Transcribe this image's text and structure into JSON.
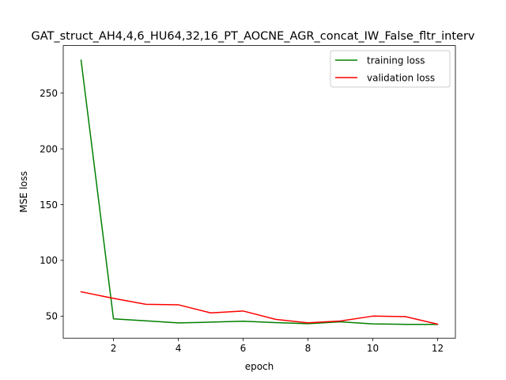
{
  "chart_data": {
    "type": "line",
    "title": "GAT_struct_AH4,4,6_HU64,32,16_PT_AOCNE_AGR_concat_IW_False_fltr_interv",
    "xlabel": "epoch",
    "ylabel": "MSE loss",
    "xlim": [
      0.45,
      12.55
    ],
    "ylim": [
      30.2,
      292.6
    ],
    "xticks": [
      2,
      4,
      6,
      8,
      10,
      12
    ],
    "yticks": [
      50,
      100,
      150,
      200,
      250
    ],
    "legend_position": "top-right",
    "x": [
      1,
      2,
      3,
      4,
      5,
      6,
      7,
      8,
      9,
      10,
      11,
      12
    ],
    "series": [
      {
        "name": "training loss",
        "color": "#008000",
        "values": [
          279.5,
          47.6,
          45.8,
          43.9,
          44.6,
          45.4,
          44.2,
          43.2,
          44.9,
          43.0,
          42.6,
          42.6
        ]
      },
      {
        "name": "validation loss",
        "color": "#ff0000",
        "values": [
          71.8,
          65.9,
          60.6,
          60.2,
          52.9,
          54.6,
          47.1,
          44.0,
          45.6,
          50.0,
          49.6,
          42.8
        ]
      }
    ]
  }
}
